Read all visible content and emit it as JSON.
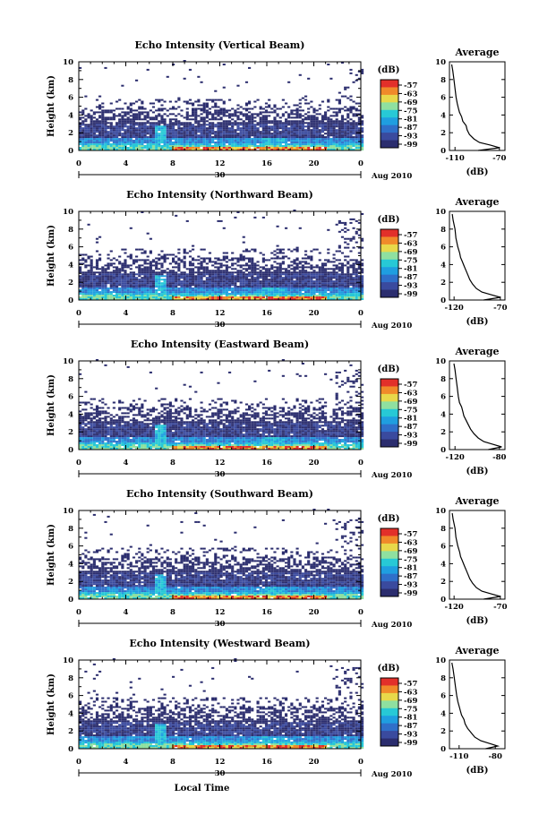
{
  "chart_data": [
    {
      "type": "heatmap",
      "title": "Echo Intensity (Vertical Beam)",
      "ylabel": "Height (km)",
      "xlabel": "",
      "x_ticks": [
        "0",
        "4",
        "8",
        "12",
        "16",
        "20",
        "0"
      ],
      "y_ticks": [
        "0",
        "2",
        "4",
        "6",
        "8",
        "10"
      ],
      "xlim": [
        0,
        24
      ],
      "ylim": [
        0,
        10
      ],
      "date_label": "30",
      "month_label": "Aug 2010",
      "colorbar": {
        "title": "(dB)",
        "ticks": [
          "-57",
          "-63",
          "-69",
          "-75",
          "-81",
          "-87",
          "-93",
          "-99"
        ]
      },
      "average": {
        "title": "Average",
        "xlabel": "(dB)",
        "x_ticks": [
          "-110",
          "-70"
        ],
        "xlim": [
          -115,
          -65
        ],
        "profile": [
          [
            -89,
            0.0
          ],
          [
            -70,
            0.3
          ],
          [
            -78,
            0.6
          ],
          [
            -88,
            0.9
          ],
          [
            -93,
            1.3
          ],
          [
            -97,
            1.8
          ],
          [
            -99,
            2.3
          ],
          [
            -100,
            2.8
          ],
          [
            -103,
            3.3
          ],
          [
            -104,
            3.8
          ],
          [
            -106,
            4.3
          ],
          [
            -107,
            4.8
          ],
          [
            -108,
            5.3
          ],
          [
            -109,
            6.0
          ],
          [
            -110,
            7.0
          ],
          [
            -111,
            8.0
          ],
          [
            -112,
            9.0
          ],
          [
            -113,
            9.7
          ]
        ]
      }
    },
    {
      "type": "heatmap",
      "title": "Echo Intensity (Northward Beam)",
      "ylabel": "Height (km)",
      "xlabel": "",
      "x_ticks": [
        "0",
        "4",
        "8",
        "12",
        "16",
        "20",
        "0"
      ],
      "y_ticks": [
        "0",
        "2",
        "4",
        "6",
        "8",
        "10"
      ],
      "xlim": [
        0,
        24
      ],
      "ylim": [
        0,
        10
      ],
      "date_label": "30",
      "month_label": "Aug 2010",
      "colorbar": {
        "title": "(dB)",
        "ticks": [
          "-57",
          "-63",
          "-69",
          "-75",
          "-81",
          "-87",
          "-93",
          "-99"
        ]
      },
      "average": {
        "title": "Average",
        "xlabel": "(dB)",
        "x_ticks": [
          "-120",
          "-70"
        ],
        "xlim": [
          -125,
          -65
        ],
        "profile": [
          [
            -88,
            0.0
          ],
          [
            -70,
            0.3
          ],
          [
            -80,
            0.6
          ],
          [
            -90,
            0.9
          ],
          [
            -96,
            1.3
          ],
          [
            -100,
            1.8
          ],
          [
            -103,
            2.3
          ],
          [
            -105,
            2.8
          ],
          [
            -107,
            3.3
          ],
          [
            -109,
            3.8
          ],
          [
            -111,
            4.3
          ],
          [
            -113,
            4.8
          ],
          [
            -114,
            5.3
          ],
          [
            -116,
            6.0
          ],
          [
            -118,
            7.0
          ],
          [
            -119,
            8.0
          ],
          [
            -121,
            9.0
          ],
          [
            -122,
            9.7
          ]
        ]
      }
    },
    {
      "type": "heatmap",
      "title": "Echo Intensity (Eastward Beam)",
      "ylabel": "Height (km)",
      "xlabel": "",
      "x_ticks": [
        "0",
        "4",
        "8",
        "12",
        "16",
        "20",
        "0"
      ],
      "y_ticks": [
        "0",
        "2",
        "4",
        "6",
        "8",
        "10"
      ],
      "xlim": [
        0,
        24
      ],
      "ylim": [
        0,
        10
      ],
      "date_label": "30",
      "month_label": "Aug 2010",
      "colorbar": {
        "title": "(dB)",
        "ticks": [
          "-57",
          "-63",
          "-69",
          "-75",
          "-81",
          "-87",
          "-93",
          "-99"
        ]
      },
      "average": {
        "title": "Average",
        "xlabel": "(dB)",
        "x_ticks": [
          "-120",
          "-80"
        ],
        "xlim": [
          -125,
          -75
        ],
        "profile": [
          [
            -90,
            0.0
          ],
          [
            -78,
            0.3
          ],
          [
            -86,
            0.6
          ],
          [
            -94,
            0.9
          ],
          [
            -99,
            1.3
          ],
          [
            -103,
            1.8
          ],
          [
            -106,
            2.3
          ],
          [
            -108,
            2.8
          ],
          [
            -110,
            3.3
          ],
          [
            -112,
            3.8
          ],
          [
            -113,
            4.3
          ],
          [
            -114,
            4.8
          ],
          [
            -116,
            5.3
          ],
          [
            -117,
            6.0
          ],
          [
            -118,
            7.0
          ],
          [
            -119,
            8.0
          ],
          [
            -120,
            9.0
          ],
          [
            -121,
            9.7
          ]
        ]
      }
    },
    {
      "type": "heatmap",
      "title": "Echo Intensity (Southward Beam)",
      "ylabel": "Height (km)",
      "xlabel": "",
      "x_ticks": [
        "0",
        "4",
        "8",
        "12",
        "16",
        "20",
        "0"
      ],
      "y_ticks": [
        "0",
        "2",
        "4",
        "6",
        "8",
        "10"
      ],
      "xlim": [
        0,
        24
      ],
      "ylim": [
        0,
        10
      ],
      "date_label": "30",
      "month_label": "Aug 2010",
      "colorbar": {
        "title": "(dB)",
        "ticks": [
          "-57",
          "-63",
          "-69",
          "-75",
          "-81",
          "-87",
          "-93",
          "-99"
        ]
      },
      "average": {
        "title": "Average",
        "xlabel": "(dB)",
        "x_ticks": [
          "-120",
          "-70"
        ],
        "xlim": [
          -125,
          -65
        ],
        "profile": [
          [
            -88,
            0.0
          ],
          [
            -70,
            0.3
          ],
          [
            -80,
            0.6
          ],
          [
            -90,
            0.9
          ],
          [
            -96,
            1.3
          ],
          [
            -100,
            1.8
          ],
          [
            -103,
            2.3
          ],
          [
            -105,
            2.8
          ],
          [
            -107,
            3.3
          ],
          [
            -109,
            3.8
          ],
          [
            -111,
            4.3
          ],
          [
            -113,
            4.8
          ],
          [
            -114,
            5.3
          ],
          [
            -116,
            6.0
          ],
          [
            -118,
            7.0
          ],
          [
            -119,
            8.0
          ],
          [
            -121,
            9.0
          ],
          [
            -122,
            9.7
          ]
        ]
      }
    },
    {
      "type": "heatmap",
      "title": "Echo Intensity (Westward Beam)",
      "ylabel": "Height (km)",
      "xlabel": "Local Time",
      "x_ticks": [
        "0",
        "4",
        "8",
        "12",
        "16",
        "20",
        "0"
      ],
      "y_ticks": [
        "0",
        "2",
        "4",
        "6",
        "8",
        "10"
      ],
      "xlim": [
        0,
        24
      ],
      "ylim": [
        0,
        10
      ],
      "date_label": "30",
      "month_label": "Aug 2010",
      "colorbar": {
        "title": "(dB)",
        "ticks": [
          "-57",
          "-63",
          "-69",
          "-75",
          "-81",
          "-87",
          "-93",
          "-99"
        ]
      },
      "average": {
        "title": "Average",
        "xlabel": "(dB)",
        "x_ticks": [
          "-110",
          "-80"
        ],
        "xlim": [
          -118,
          -72
        ],
        "profile": [
          [
            -88,
            0.0
          ],
          [
            -78,
            0.3
          ],
          [
            -85,
            0.6
          ],
          [
            -92,
            0.9
          ],
          [
            -97,
            1.3
          ],
          [
            -100,
            1.8
          ],
          [
            -103,
            2.3
          ],
          [
            -105,
            2.8
          ],
          [
            -106,
            3.3
          ],
          [
            -108,
            3.8
          ],
          [
            -109,
            4.3
          ],
          [
            -110,
            4.8
          ],
          [
            -111,
            5.3
          ],
          [
            -112,
            6.0
          ],
          [
            -113,
            7.0
          ],
          [
            -114,
            8.0
          ],
          [
            -115,
            9.0
          ],
          [
            -116,
            9.7
          ]
        ]
      }
    }
  ],
  "colors": {
    "colormap": [
      "#2b2d6e",
      "#3a4a9e",
      "#2f6fc9",
      "#1f9ee0",
      "#27c9d6",
      "#8fe0a0",
      "#e8d84a",
      "#f08a2a",
      "#e2302a"
    ]
  }
}
